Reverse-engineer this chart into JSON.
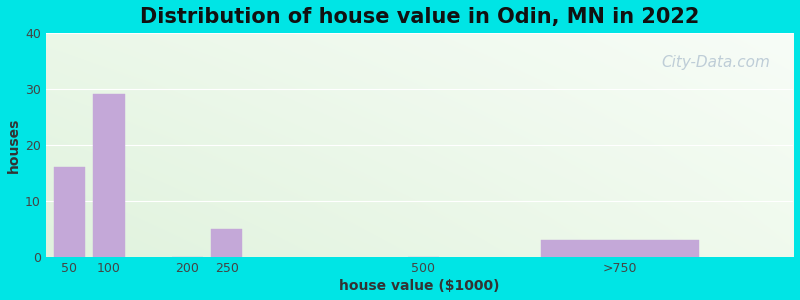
{
  "title": "Distribution of house value in Odin, MN in 2022",
  "xlabel": "house value ($1000)",
  "ylabel": "houses",
  "bar_labels": [
    "50",
    "100",
    "200",
    "250",
    "500",
    ">750"
  ],
  "bar_values": [
    16,
    29,
    0,
    5,
    0,
    3
  ],
  "bar_positions": [
    50,
    100,
    200,
    250,
    500,
    750
  ],
  "bar_widths": [
    40,
    40,
    40,
    40,
    40,
    200
  ],
  "bar_color": "#c4a8d8",
  "bar_edgecolor": "#c4a8d8",
  "ylim": [
    0,
    40
  ],
  "yticks": [
    0,
    10,
    20,
    30,
    40
  ],
  "xlim_min": 20,
  "xlim_max": 970,
  "background_outer": "#00e5e5",
  "bg_color_topleft": [
    0.88,
    0.96,
    0.88,
    1.0
  ],
  "bg_color_topright": [
    0.97,
    0.99,
    0.97,
    1.0
  ],
  "bg_color_bottomleft": [
    0.85,
    0.95,
    0.85,
    1.0
  ],
  "bg_color_bottomright": [
    0.97,
    0.99,
    0.97,
    1.0
  ],
  "title_fontsize": 15,
  "axis_label_fontsize": 10,
  "tick_fontsize": 9,
  "watermark_text": "City-Data.com",
  "watermark_color": "#b8c8d4",
  "watermark_fontsize": 11,
  "tick_label_positions": [
    50,
    100,
    200,
    250,
    500,
    750
  ],
  "tick_labels": [
    "50",
    "100",
    "200",
    "250",
    "500",
    ">750"
  ]
}
